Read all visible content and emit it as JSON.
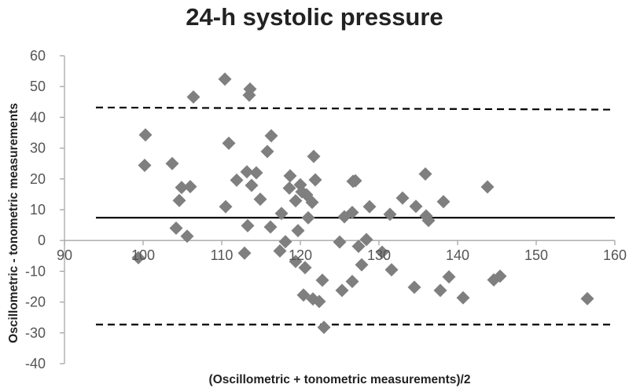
{
  "chart_data": {
    "type": "scatter",
    "title": "24-h systolic pressure",
    "xlabel": "(Oscillometric + tonometric measurements)/2",
    "ylabel": "Oscillometric - tonometric measurements",
    "xlim": [
      90,
      160
    ],
    "ylim": [
      -40,
      60
    ],
    "xticks": [
      90,
      100,
      110,
      120,
      130,
      140,
      150,
      160
    ],
    "yticks": [
      -40,
      -30,
      -20,
      -10,
      0,
      10,
      20,
      30,
      40,
      50,
      60
    ],
    "grid": false,
    "reference_lines": [
      {
        "name": "upper limit of agreement",
        "style": "dashed",
        "x": [
          94,
          160
        ],
        "y": [
          43.2,
          42.5
        ]
      },
      {
        "name": "mean difference",
        "style": "solid",
        "x": [
          94,
          160
        ],
        "y": [
          7.4,
          7.4
        ]
      },
      {
        "name": "lower limit of agreement",
        "style": "dashed",
        "x": [
          94,
          160
        ],
        "y": [
          -27.3,
          -27.3
        ]
      }
    ],
    "series": [
      {
        "name": "Differences",
        "color": "#7f7f7f",
        "marker": "diamond",
        "points": [
          [
            99.4,
            -5.6
          ],
          [
            100.3,
            34.3
          ],
          [
            100.2,
            24.4
          ],
          [
            103.7,
            25.0
          ],
          [
            104.2,
            4.0
          ],
          [
            104.6,
            13.0
          ],
          [
            104.9,
            17.2
          ],
          [
            106.0,
            17.5
          ],
          [
            105.6,
            1.4
          ],
          [
            106.4,
            46.6
          ],
          [
            110.4,
            52.4
          ],
          [
            110.5,
            11.0
          ],
          [
            110.9,
            31.6
          ],
          [
            111.9,
            19.6
          ],
          [
            112.9,
            -4.1
          ],
          [
            113.2,
            22.3
          ],
          [
            113.3,
            4.8
          ],
          [
            113.6,
            49.2
          ],
          [
            113.5,
            47.2
          ],
          [
            113.8,
            17.9
          ],
          [
            114.4,
            22.0
          ],
          [
            114.9,
            13.4
          ],
          [
            115.8,
            28.9
          ],
          [
            116.3,
            34.0
          ],
          [
            116.2,
            4.4
          ],
          [
            117.4,
            -3.4
          ],
          [
            117.6,
            8.8
          ],
          [
            118.1,
            -0.4
          ],
          [
            118.6,
            17.0
          ],
          [
            118.7,
            21.0
          ],
          [
            119.4,
            12.9
          ],
          [
            119.4,
            -6.8
          ],
          [
            119.7,
            3.2
          ],
          [
            120.0,
            18.1
          ],
          [
            120.2,
            15.8
          ],
          [
            120.4,
            -17.7
          ],
          [
            120.6,
            -8.8
          ],
          [
            120.8,
            14.8
          ],
          [
            121.0,
            7.4
          ],
          [
            121.5,
            12.4
          ],
          [
            121.7,
            27.3
          ],
          [
            121.9,
            19.7
          ],
          [
            121.6,
            -19.0
          ],
          [
            122.4,
            -19.8
          ],
          [
            122.8,
            -12.9
          ],
          [
            123.0,
            -28.2
          ],
          [
            125.0,
            -0.5
          ],
          [
            125.3,
            -16.2
          ],
          [
            125.6,
            7.7
          ],
          [
            126.6,
            9.1
          ],
          [
            126.7,
            19.2
          ],
          [
            127.0,
            19.4
          ],
          [
            126.6,
            -13.3
          ],
          [
            127.4,
            -1.9
          ],
          [
            127.8,
            -7.9
          ],
          [
            128.4,
            0.3
          ],
          [
            128.8,
            11.0
          ],
          [
            130.4,
            -3.8
          ],
          [
            131.4,
            8.5
          ],
          [
            131.6,
            -9.5
          ],
          [
            133.0,
            13.8
          ],
          [
            134.5,
            -15.2
          ],
          [
            134.7,
            11.1
          ],
          [
            135.9,
            21.6
          ],
          [
            136.0,
            8.0
          ],
          [
            136.3,
            6.5
          ],
          [
            137.8,
            -16.2
          ],
          [
            138.2,
            12.6
          ],
          [
            138.9,
            -11.8
          ],
          [
            140.7,
            -18.6
          ],
          [
            143.8,
            17.4
          ],
          [
            144.6,
            -12.8
          ],
          [
            145.4,
            -11.6
          ],
          [
            156.5,
            -18.9
          ]
        ]
      }
    ]
  }
}
